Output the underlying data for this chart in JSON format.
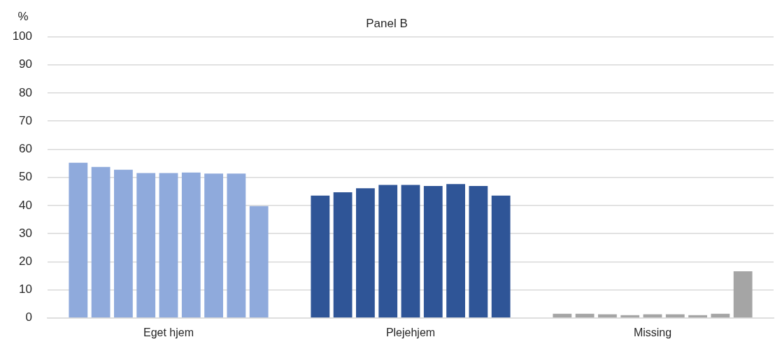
{
  "chart_data": {
    "type": "bar",
    "title": "Panel B",
    "ylabel": "%",
    "categories": [
      "Eget hjem",
      "Plejehjem",
      "Missing"
    ],
    "series": [
      {
        "colors": [
          "#8faadc",
          "#2f5597",
          "#a5a5a5"
        ],
        "values": [
          55.2,
          43.5,
          1.5
        ]
      },
      {
        "colors": [
          "#8faadc",
          "#2f5597",
          "#a5a5a5"
        ],
        "values": [
          53.7,
          44.7,
          1.5
        ]
      },
      {
        "colors": [
          "#8faadc",
          "#2f5597",
          "#a5a5a5"
        ],
        "values": [
          52.7,
          46.1,
          1.3
        ]
      },
      {
        "colors": [
          "#8faadc",
          "#2f5597",
          "#a5a5a5"
        ],
        "values": [
          51.5,
          47.3,
          1.0
        ]
      },
      {
        "colors": [
          "#8faadc",
          "#2f5597",
          "#a5a5a5"
        ],
        "values": [
          51.5,
          47.3,
          1.3
        ]
      },
      {
        "colors": [
          "#8faadc",
          "#2f5597",
          "#a5a5a5"
        ],
        "values": [
          51.7,
          46.9,
          1.3
        ]
      },
      {
        "colors": [
          "#8faadc",
          "#2f5597",
          "#a5a5a5"
        ],
        "values": [
          51.3,
          47.6,
          1.0
        ]
      },
      {
        "colors": [
          "#8faadc",
          "#2f5597",
          "#a5a5a5"
        ],
        "values": [
          51.3,
          46.9,
          1.5
        ]
      },
      {
        "colors": [
          "#8faadc",
          "#2f5597",
          "#a5a5a5"
        ],
        "values": [
          39.8,
          43.5,
          16.6
        ]
      }
    ],
    "ylim": [
      0,
      100
    ],
    "yticks": [
      0,
      10,
      20,
      30,
      40,
      50,
      60,
      70,
      80,
      90,
      100
    ],
    "grid": "y"
  }
}
